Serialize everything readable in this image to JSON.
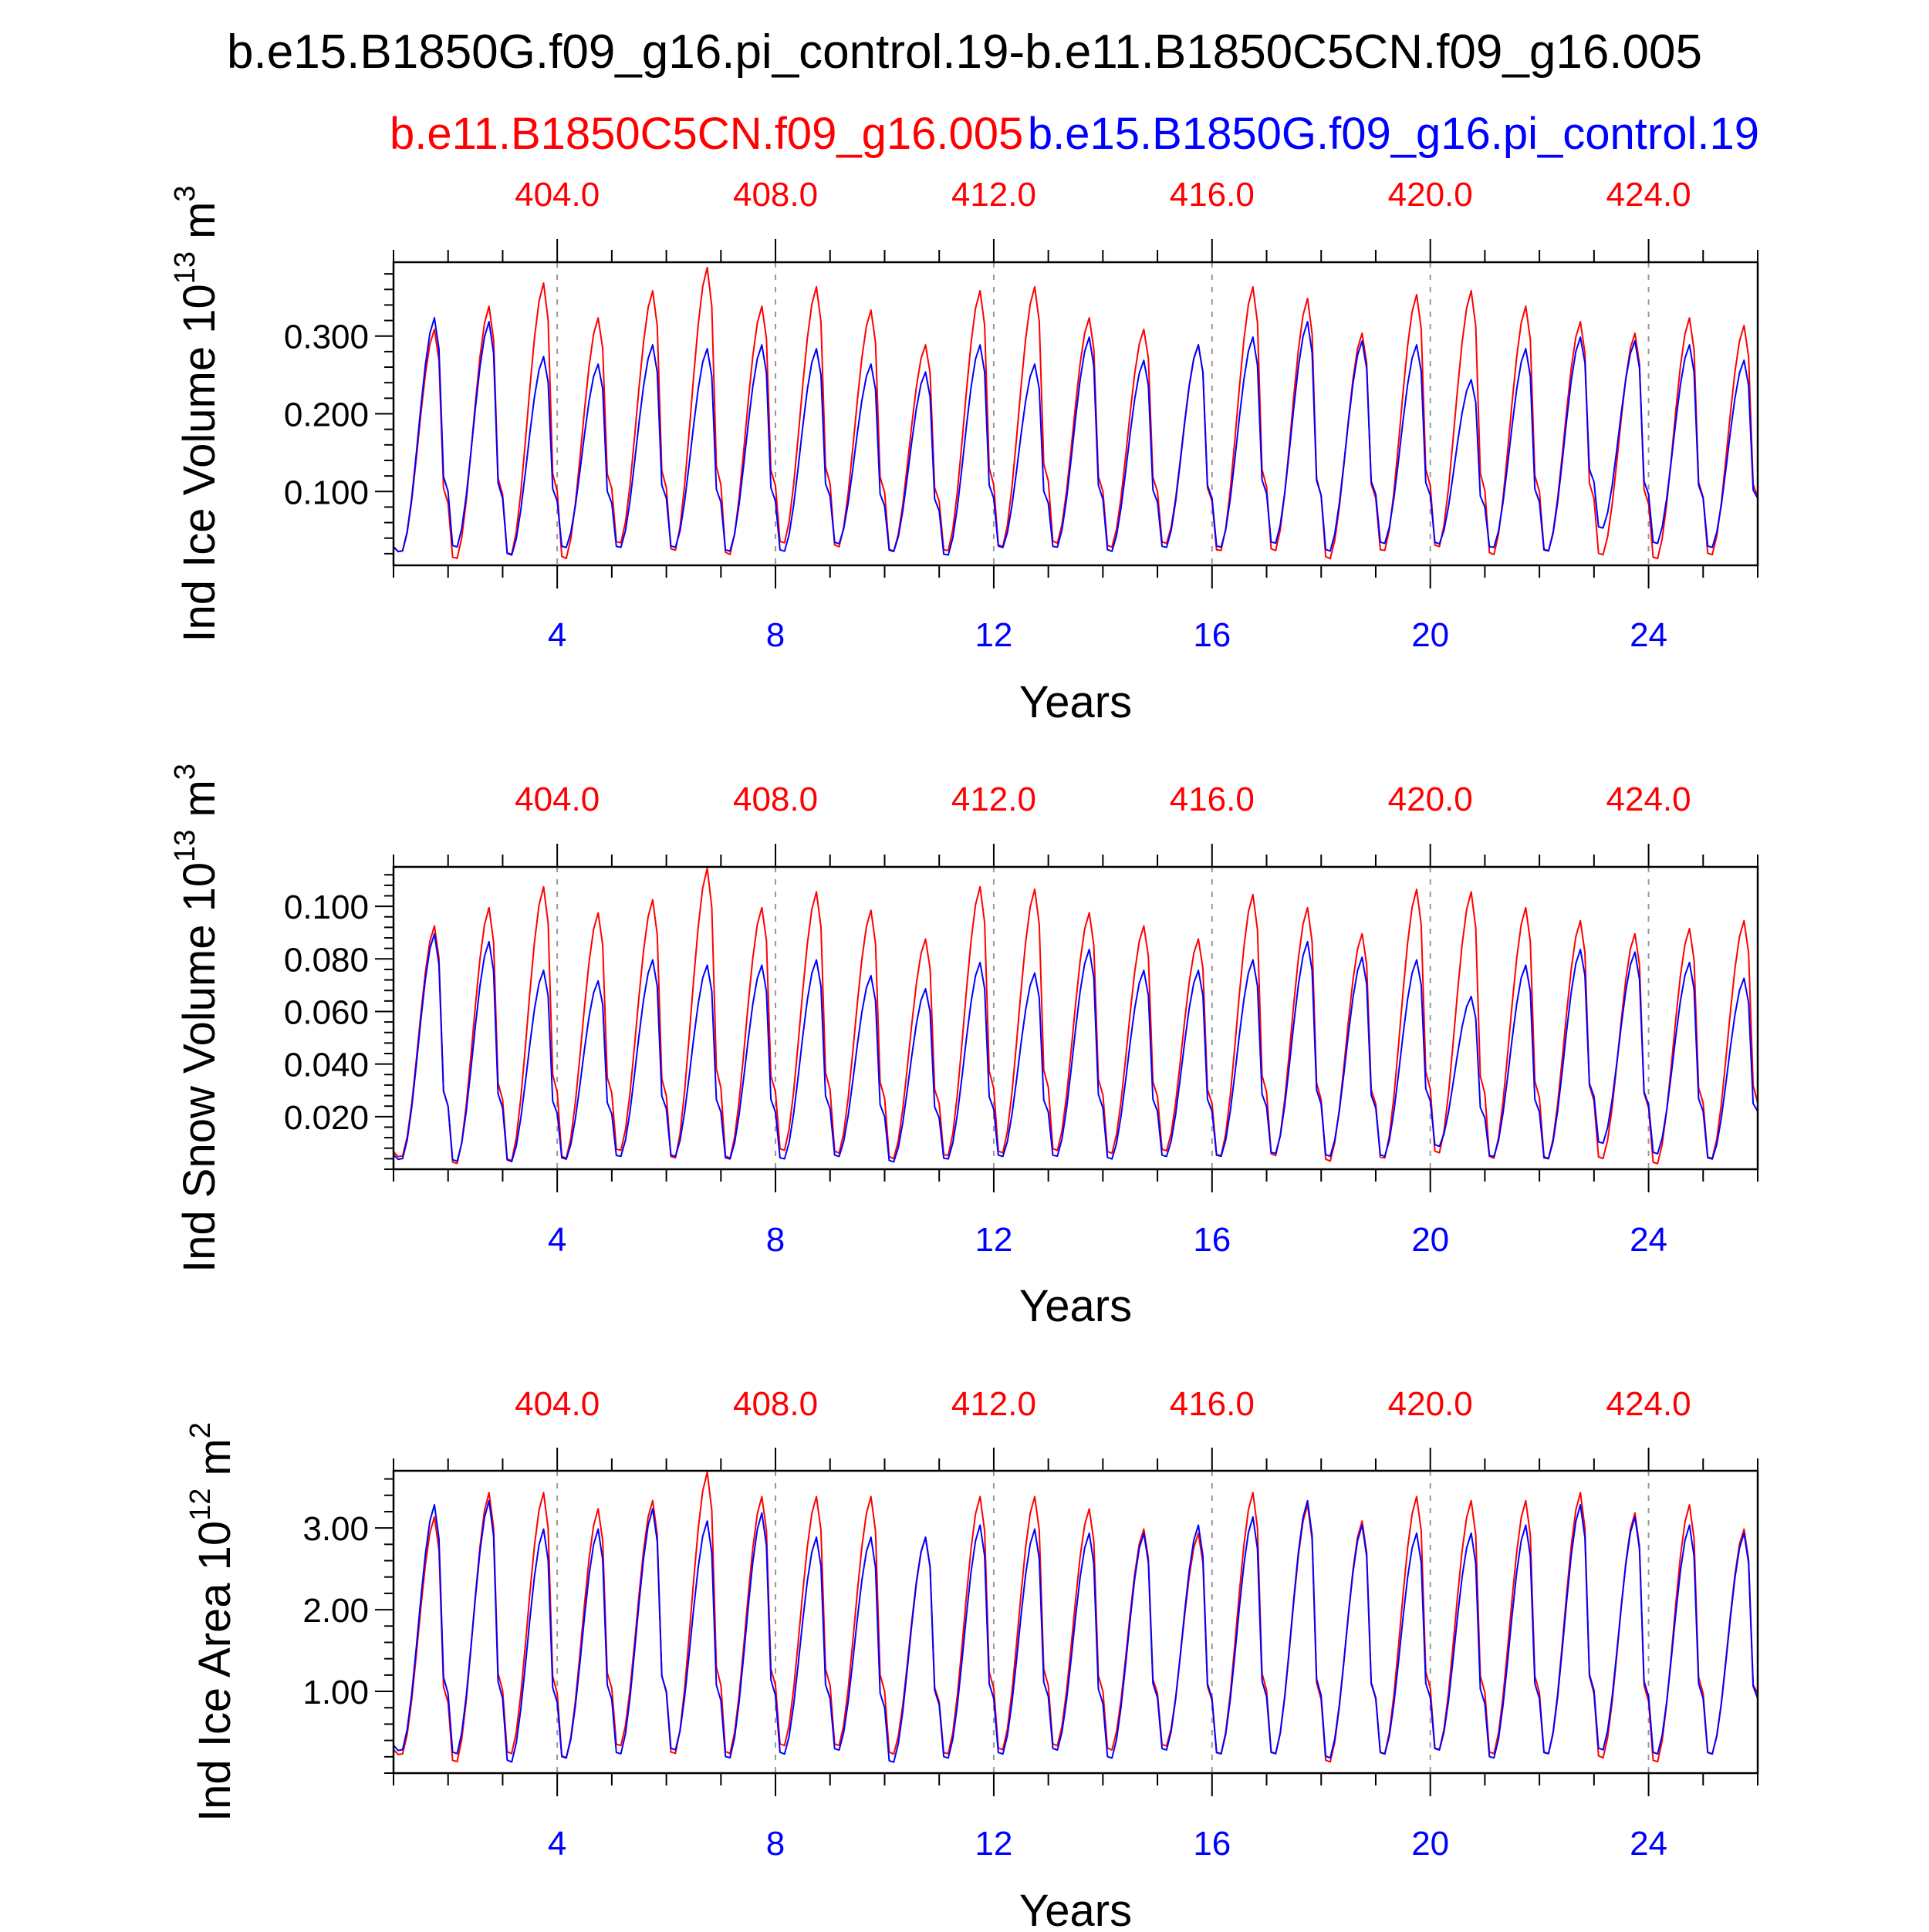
{
  "title": "b.e15.B1850G.f09_g16.pi_control.19-b.e11.B1850C5CN.f09_g16.005",
  "legend": {
    "red_label": "b.e11.B1850C5CN.f09_g16.005",
    "blue_label": "b.e15.B1850G.f09_g16.pi_control.19"
  },
  "colors": {
    "red": "#ff0000",
    "blue": "#0000ff",
    "axis": "#000000",
    "grid": "#999999"
  },
  "chart_data": [
    {
      "type": "line",
      "title": "",
      "ylabel_main": "Ind Ice Volume 10",
      "ylabel_exp": "13",
      "ylabel_unit": " m",
      "ylabel_unit_exp": "3",
      "xlabel": "Years",
      "xlim": [
        1,
        26
      ],
      "ylim": [
        0.005,
        0.395
      ],
      "yticks": [
        "0.100",
        "0.200",
        "0.300"
      ],
      "ytick_values": [
        0.1,
        0.2,
        0.3
      ],
      "bottom_xticks": [
        "4",
        "8",
        "12",
        "16",
        "20",
        "24"
      ],
      "top_xticks": [
        "404.0",
        "408.0",
        "412.0",
        "416.0",
        "420.0",
        "424.0"
      ],
      "xtick_values": [
        4,
        8,
        12,
        16,
        20,
        24
      ],
      "series": [
        {
          "name": "b.e11.B1850C5CN.f09_g16.005",
          "color": "red",
          "peaks": [
            0.31,
            0.34,
            0.37,
            0.325,
            0.36,
            0.39,
            0.34,
            0.365,
            0.335,
            0.29,
            0.36,
            0.365,
            0.325,
            0.31,
            0.29,
            0.365,
            0.35,
            0.305,
            0.355,
            0.36,
            0.34,
            0.32,
            0.305,
            0.325,
            0.315
          ],
          "troughs": [
            0.02,
            0.01,
            0.015,
            0.01,
            0.03,
            0.02,
            0.015,
            0.03,
            0.025,
            0.02,
            0.02,
            0.025,
            0.03,
            0.025,
            0.03,
            0.02,
            0.02,
            0.01,
            0.02,
            0.025,
            0.015,
            0.02,
            0.015,
            0.01,
            0.015
          ]
        },
        {
          "name": "b.e15.B1850G.f09_g16.pi_control.19",
          "color": "blue",
          "peaks": [
            0.325,
            0.32,
            0.275,
            0.265,
            0.29,
            0.285,
            0.29,
            0.285,
            0.265,
            0.255,
            0.29,
            0.265,
            0.3,
            0.27,
            0.29,
            0.3,
            0.32,
            0.295,
            0.29,
            0.245,
            0.285,
            0.3,
            0.295,
            0.29,
            0.27
          ],
          "troughs": [
            0.02,
            0.025,
            0.015,
            0.025,
            0.025,
            0.025,
            0.02,
            0.02,
            0.03,
            0.02,
            0.015,
            0.025,
            0.025,
            0.02,
            0.025,
            0.025,
            0.03,
            0.02,
            0.03,
            0.03,
            0.025,
            0.02,
            0.05,
            0.03,
            0.025
          ]
        }
      ]
    },
    {
      "type": "line",
      "title": "",
      "ylabel_main": "Ind Snow Volume 10",
      "ylabel_exp": "13",
      "ylabel_unit": " m",
      "ylabel_unit_exp": "3",
      "xlabel": "Years",
      "xlim": [
        1,
        26
      ],
      "ylim": [
        0.0,
        0.115
      ],
      "yticks": [
        "0.020",
        "0.040",
        "0.060",
        "0.080",
        "0.100"
      ],
      "ytick_values": [
        0.02,
        0.04,
        0.06,
        0.08,
        0.1
      ],
      "bottom_xticks": [
        "4",
        "8",
        "12",
        "16",
        "20",
        "24"
      ],
      "top_xticks": [
        "404.0",
        "408.0",
        "412.0",
        "416.0",
        "420.0",
        "424.0"
      ],
      "xtick_values": [
        4,
        8,
        12,
        16,
        20,
        24
      ],
      "series": [
        {
          "name": "b.e11.B1850C5CN.f09_g16.005",
          "color": "red",
          "peaks": [
            0.093,
            0.1,
            0.108,
            0.098,
            0.103,
            0.115,
            0.1,
            0.106,
            0.099,
            0.088,
            0.108,
            0.107,
            0.098,
            0.093,
            0.088,
            0.105,
            0.1,
            0.09,
            0.107,
            0.106,
            0.1,
            0.095,
            0.09,
            0.092,
            0.095
          ],
          "troughs": [
            0.004,
            0.001,
            0.002,
            0.003,
            0.006,
            0.003,
            0.003,
            0.006,
            0.005,
            0.003,
            0.004,
            0.005,
            0.006,
            0.005,
            0.006,
            0.004,
            0.004,
            0.002,
            0.003,
            0.005,
            0.003,
            0.003,
            0.003,
            0.001,
            0.003
          ]
        },
        {
          "name": "b.e15.B1850G.f09_g16.pi_control.19",
          "color": "blue",
          "peaks": [
            0.09,
            0.087,
            0.076,
            0.072,
            0.08,
            0.078,
            0.078,
            0.08,
            0.074,
            0.069,
            0.079,
            0.075,
            0.084,
            0.076,
            0.076,
            0.08,
            0.087,
            0.081,
            0.08,
            0.066,
            0.078,
            0.084,
            0.083,
            0.079,
            0.073
          ],
          "troughs": [
            0.003,
            0.002,
            0.002,
            0.003,
            0.004,
            0.004,
            0.003,
            0.003,
            0.004,
            0.002,
            0.003,
            0.004,
            0.004,
            0.003,
            0.004,
            0.004,
            0.005,
            0.004,
            0.004,
            0.008,
            0.004,
            0.003,
            0.009,
            0.005,
            0.003
          ]
        }
      ]
    },
    {
      "type": "line",
      "title": "",
      "ylabel_main": "Ind Ice Area 10",
      "ylabel_exp": "12",
      "ylabel_unit": " m",
      "ylabel_unit_exp": "2",
      "xlabel": "Years",
      "xlim": [
        1,
        26
      ],
      "ylim": [
        0.0,
        3.7
      ],
      "yticks": [
        "1.00",
        "2.00",
        "3.00"
      ],
      "ytick_values": [
        1,
        2,
        3
      ],
      "bottom_xticks": [
        "4",
        "8",
        "12",
        "16",
        "20",
        "24"
      ],
      "top_xticks": [
        "404.0",
        "408.0",
        "412.0",
        "416.0",
        "420.0",
        "424.0"
      ],
      "xtick_values": [
        4,
        8,
        12,
        16,
        20,
        24
      ],
      "series": [
        {
          "name": "b.e11.B1850C5CN.f09_g16.005",
          "color": "red",
          "peaks": [
            3.15,
            3.45,
            3.45,
            3.25,
            3.35,
            3.7,
            3.4,
            3.4,
            3.4,
            2.9,
            3.4,
            3.4,
            3.25,
            3.0,
            2.95,
            3.45,
            3.3,
            3.1,
            3.4,
            3.35,
            3.35,
            3.45,
            3.2,
            3.3,
            3.0
          ],
          "troughs": [
            0.2,
            0.1,
            0.2,
            0.15,
            0.3,
            0.2,
            0.2,
            0.3,
            0.3,
            0.2,
            0.2,
            0.25,
            0.3,
            0.25,
            0.3,
            0.2,
            0.2,
            0.1,
            0.2,
            0.25,
            0.2,
            0.2,
            0.15,
            0.1,
            0.2
          ]
        },
        {
          "name": "b.e15.B1850G.f09_g16.pi_control.19",
          "color": "blue",
          "peaks": [
            3.3,
            3.35,
            3.0,
            3.0,
            3.25,
            3.1,
            3.2,
            2.9,
            2.9,
            2.9,
            3.05,
            3.0,
            2.95,
            2.95,
            3.05,
            3.15,
            3.35,
            3.05,
            2.95,
            2.95,
            3.05,
            3.3,
            3.15,
            3.05,
            2.95
          ],
          "troughs": [
            0.25,
            0.2,
            0.1,
            0.15,
            0.2,
            0.25,
            0.15,
            0.2,
            0.25,
            0.1,
            0.15,
            0.2,
            0.25,
            0.15,
            0.25,
            0.2,
            0.2,
            0.15,
            0.2,
            0.25,
            0.15,
            0.2,
            0.25,
            0.2,
            0.2
          ]
        }
      ]
    }
  ]
}
